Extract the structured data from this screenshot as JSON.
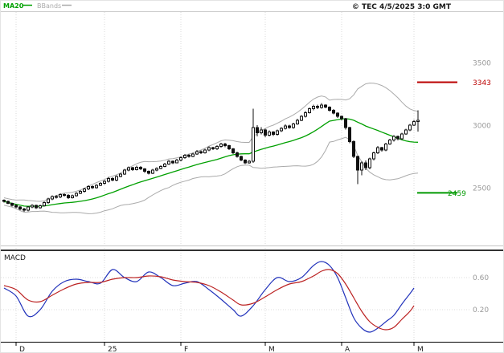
{
  "legend": {
    "ma20": {
      "label": "MA20",
      "color": "#00a000"
    },
    "bbands": {
      "label": "BBands",
      "color": "#aaaaaa"
    }
  },
  "copyright": "© TEC 4/5/2025 3:0 GMT",
  "chart_data": [
    {
      "type": "candlestick",
      "overlays": [
        "MA20",
        "BBands"
      ],
      "x_axis": {
        "labels": [
          "D",
          "25",
          "F",
          "M",
          "A",
          "M"
        ],
        "tick_candle_indices": [
          3,
          25,
          44,
          65,
          84,
          102
        ]
      },
      "y_axis": {
        "ticks": [
          3500,
          3000,
          2500
        ],
        "tick_labels": [
          "3500",
          "3000",
          "2500"
        ]
      },
      "levels": [
        {
          "type": "resistance",
          "value": 3343,
          "label": "3343",
          "color": "#bb0000"
        },
        {
          "type": "support",
          "value": 2459,
          "label": "2459",
          "color": "#009900"
        }
      ],
      "candles_ohlc": [
        [
          2400,
          2408,
          2382,
          2390
        ],
        [
          2390,
          2396,
          2367,
          2375
        ],
        [
          2375,
          2382,
          2350,
          2360
        ],
        [
          2360,
          2368,
          2336,
          2345
        ],
        [
          2345,
          2352,
          2320,
          2330
        ],
        [
          2330,
          2340,
          2308,
          2320
        ],
        [
          2320,
          2353,
          2312,
          2345
        ],
        [
          2345,
          2370,
          2338,
          2360
        ],
        [
          2360,
          2366,
          2330,
          2340
        ],
        [
          2340,
          2364,
          2333,
          2355
        ],
        [
          2355,
          2390,
          2348,
          2380
        ],
        [
          2380,
          2420,
          2372,
          2410
        ],
        [
          2410,
          2440,
          2402,
          2430
        ],
        [
          2430,
          2442,
          2415,
          2425
        ],
        [
          2425,
          2455,
          2418,
          2445
        ],
        [
          2445,
          2456,
          2430,
          2440
        ],
        [
          2440,
          2448,
          2410,
          2420
        ],
        [
          2420,
          2444,
          2412,
          2435
        ],
        [
          2435,
          2465,
          2428,
          2455
        ],
        [
          2455,
          2480,
          2448,
          2470
        ],
        [
          2470,
          2500,
          2462,
          2490
        ],
        [
          2490,
          2520,
          2482,
          2510
        ],
        [
          2510,
          2518,
          2490,
          2500
        ],
        [
          2500,
          2530,
          2494,
          2520
        ],
        [
          2520,
          2545,
          2512,
          2535
        ],
        [
          2535,
          2560,
          2527,
          2550
        ],
        [
          2550,
          2585,
          2542,
          2575
        ],
        [
          2575,
          2583,
          2550,
          2560
        ],
        [
          2560,
          2600,
          2552,
          2590
        ],
        [
          2590,
          2620,
          2582,
          2610
        ],
        [
          2610,
          2650,
          2602,
          2640
        ],
        [
          2640,
          2670,
          2632,
          2660
        ],
        [
          2660,
          2668,
          2635,
          2645
        ],
        [
          2645,
          2675,
          2638,
          2665
        ],
        [
          2665,
          2673,
          2640,
          2650
        ],
        [
          2650,
          2658,
          2620,
          2630
        ],
        [
          2630,
          2638,
          2605,
          2615
        ],
        [
          2615,
          2650,
          2608,
          2640
        ],
        [
          2640,
          2665,
          2632,
          2655
        ],
        [
          2655,
          2680,
          2648,
          2670
        ],
        [
          2670,
          2700,
          2662,
          2690
        ],
        [
          2690,
          2720,
          2682,
          2710
        ],
        [
          2710,
          2718,
          2690,
          2700
        ],
        [
          2700,
          2730,
          2694,
          2720
        ],
        [
          2720,
          2750,
          2712,
          2740
        ],
        [
          2740,
          2770,
          2732,
          2760
        ],
        [
          2760,
          2768,
          2740,
          2750
        ],
        [
          2750,
          2780,
          2742,
          2770
        ],
        [
          2770,
          2800,
          2762,
          2790
        ],
        [
          2790,
          2798,
          2770,
          2780
        ],
        [
          2780,
          2810,
          2772,
          2800
        ],
        [
          2800,
          2830,
          2792,
          2820
        ],
        [
          2820,
          2828,
          2800,
          2810
        ],
        [
          2810,
          2840,
          2802,
          2830
        ],
        [
          2830,
          2860,
          2822,
          2850
        ],
        [
          2850,
          2858,
          2825,
          2835
        ],
        [
          2835,
          2843,
          2800,
          2810
        ],
        [
          2810,
          2818,
          2770,
          2780
        ],
        [
          2780,
          2788,
          2740,
          2750
        ],
        [
          2750,
          2758,
          2710,
          2720
        ],
        [
          2720,
          2728,
          2688,
          2700
        ],
        [
          2700,
          2720,
          2692,
          2710
        ],
        [
          2710,
          3130,
          2700,
          2980
        ],
        [
          2980,
          3000,
          2910,
          2940
        ],
        [
          2940,
          2985,
          2925,
          2960
        ],
        [
          2960,
          2970,
          2905,
          2920
        ],
        [
          2920,
          2958,
          2910,
          2945
        ],
        [
          2945,
          2952,
          2912,
          2925
        ],
        [
          2925,
          2965,
          2916,
          2955
        ],
        [
          2955,
          2985,
          2946,
          2975
        ],
        [
          2975,
          3005,
          2966,
          2995
        ],
        [
          2995,
          3002,
          2970,
          2980
        ],
        [
          2980,
          3020,
          2972,
          3010
        ],
        [
          3010,
          3050,
          3002,
          3040
        ],
        [
          3040,
          3080,
          3032,
          3070
        ],
        [
          3070,
          3112,
          3060,
          3100
        ],
        [
          3100,
          3142,
          3092,
          3130
        ],
        [
          3130,
          3165,
          3120,
          3150
        ],
        [
          3150,
          3162,
          3128,
          3140
        ],
        [
          3140,
          3175,
          3132,
          3160
        ],
        [
          3160,
          3168,
          3134,
          3145
        ],
        [
          3145,
          3152,
          3110,
          3120
        ],
        [
          3120,
          3128,
          3085,
          3095
        ],
        [
          3095,
          3102,
          3058,
          3070
        ],
        [
          3070,
          3078,
          3040,
          3050
        ],
        [
          3050,
          3058,
          2966,
          2980
        ],
        [
          2980,
          2988,
          2856,
          2870
        ],
        [
          2870,
          2878,
          2736,
          2750
        ],
        [
          2750,
          2758,
          2530,
          2640
        ],
        [
          2640,
          2712,
          2600,
          2700
        ],
        [
          2700,
          2718,
          2640,
          2660
        ],
        [
          2660,
          2740,
          2648,
          2730
        ],
        [
          2730,
          2790,
          2718,
          2780
        ],
        [
          2780,
          2832,
          2770,
          2820
        ],
        [
          2820,
          2828,
          2788,
          2800
        ],
        [
          2800,
          2860,
          2792,
          2850
        ],
        [
          2850,
          2890,
          2842,
          2880
        ],
        [
          2880,
          2920,
          2870,
          2910
        ],
        [
          2910,
          2918,
          2878,
          2890
        ],
        [
          2890,
          2940,
          2882,
          2930
        ],
        [
          2930,
          2970,
          2922,
          2960
        ],
        [
          2960,
          3010,
          2952,
          3000
        ],
        [
          3000,
          3042,
          2992,
          3030
        ],
        [
          3030,
          3120,
          2950,
          3040
        ]
      ]
    },
    {
      "type": "line",
      "name": "MACD",
      "y_axis": {
        "ticks": [
          0.6,
          0.2
        ],
        "tick_labels": [
          "0.60",
          "0.20"
        ]
      },
      "series": [
        {
          "name": "MACD",
          "color": "#2233bb",
          "candle_index": [
            0,
            3,
            6,
            9,
            12,
            15,
            18,
            21,
            24,
            27,
            30,
            33,
            36,
            39,
            42,
            45,
            48,
            51,
            54,
            57,
            59,
            62,
            65,
            68,
            71,
            74,
            77,
            79,
            81,
            83,
            85,
            87,
            89,
            91,
            93,
            95,
            97,
            99,
            101,
            102
          ],
          "values": [
            0.47,
            0.37,
            0.12,
            0.2,
            0.43,
            0.55,
            0.58,
            0.55,
            0.53,
            0.7,
            0.6,
            0.55,
            0.67,
            0.6,
            0.5,
            0.53,
            0.55,
            0.45,
            0.33,
            0.2,
            0.12,
            0.25,
            0.45,
            0.6,
            0.55,
            0.6,
            0.75,
            0.8,
            0.75,
            0.6,
            0.35,
            0.1,
            -0.03,
            -0.08,
            -0.03,
            0.05,
            0.13,
            0.27,
            0.4,
            0.47
          ]
        },
        {
          "name": "signal",
          "color": "#bb2222",
          "candle_index": [
            0,
            3,
            6,
            9,
            12,
            15,
            18,
            21,
            24,
            27,
            30,
            33,
            36,
            39,
            42,
            45,
            48,
            51,
            54,
            57,
            59,
            62,
            65,
            68,
            71,
            74,
            77,
            79,
            81,
            83,
            85,
            87,
            89,
            91,
            93,
            95,
            97,
            99,
            101,
            102
          ],
          "values": [
            0.5,
            0.45,
            0.32,
            0.3,
            0.38,
            0.46,
            0.52,
            0.54,
            0.54,
            0.58,
            0.6,
            0.6,
            0.62,
            0.61,
            0.57,
            0.55,
            0.54,
            0.5,
            0.42,
            0.32,
            0.26,
            0.28,
            0.36,
            0.45,
            0.52,
            0.55,
            0.62,
            0.68,
            0.7,
            0.65,
            0.52,
            0.35,
            0.18,
            0.05,
            -0.02,
            -0.05,
            -0.02,
            0.08,
            0.18,
            0.25
          ]
        }
      ]
    }
  ]
}
